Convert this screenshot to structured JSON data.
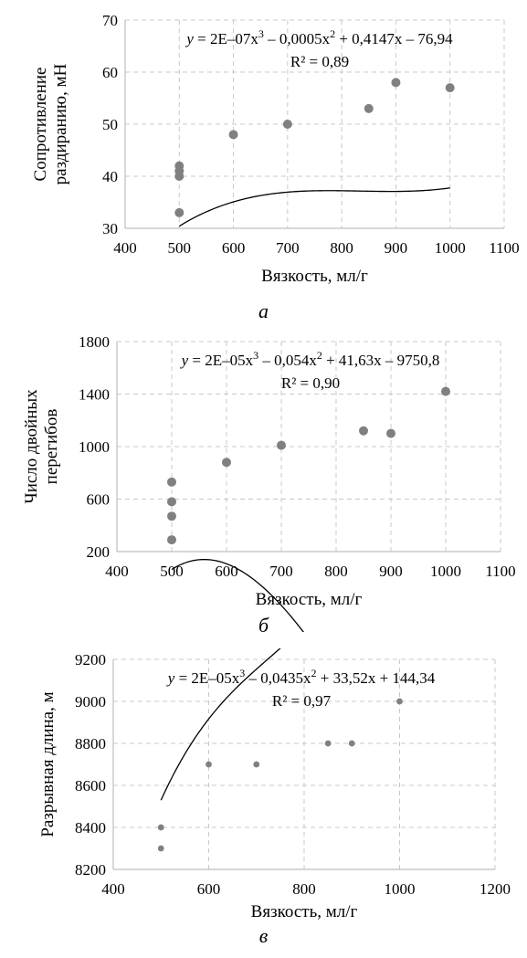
{
  "chart_data": [
    {
      "type": "scatter",
      "panel_label": "а",
      "xlabel": "Вязкость, мл/г",
      "ylabel": [
        "Сопротивление",
        "раздиранию, мН"
      ],
      "xlim": [
        400,
        1100
      ],
      "ylim": [
        30,
        70
      ],
      "xticks": [
        400,
        500,
        600,
        700,
        800,
        900,
        1000,
        1100
      ],
      "yticks": [
        30,
        40,
        50,
        60,
        70
      ],
      "grid": true,
      "series": [
        {
          "x": [
            500,
            500,
            500,
            500,
            600,
            700,
            850,
            900,
            1000
          ],
          "y": [
            33,
            40,
            41,
            42,
            48,
            50,
            53,
            58,
            57
          ]
        }
      ],
      "trendline": {
        "type": "polynomial",
        "degree": 3,
        "coefficients": [
          2e-07,
          -0.0005,
          0.4147,
          -76.94
        ],
        "x_range": [
          500,
          1000
        ],
        "equation": [
          "y = 2E–07x",
          "3",
          " – 0,0005x",
          "2",
          " + 0,4147x – 76,94"
        ],
        "r2": "R² = 0,89"
      }
    },
    {
      "type": "scatter",
      "panel_label": "б",
      "xlabel": "Вязкость, мл/г",
      "ylabel": [
        "Число двойных",
        "перегибов"
      ],
      "xlim": [
        400,
        1100
      ],
      "ylim": [
        200,
        1800
      ],
      "xticks": [
        400,
        500,
        600,
        700,
        800,
        900,
        1000,
        1100
      ],
      "yticks": [
        200,
        600,
        1000,
        1400,
        1800
      ],
      "grid": true,
      "series": [
        {
          "x": [
            500,
            500,
            500,
            500,
            600,
            700,
            850,
            900,
            1000
          ],
          "y": [
            290,
            470,
            580,
            730,
            880,
            1010,
            1120,
            1100,
            1420
          ]
        }
      ],
      "trendline": {
        "type": "polynomial",
        "degree": 3,
        "coefficients": [
          2e-05,
          -0.054,
          41.63,
          -9750.8
        ],
        "x_range": [
          500,
          1000
        ],
        "equation": [
          "y = 2E–05x",
          "3",
          " – 0,054x",
          "2",
          " + 41,63x – 9750,8"
        ],
        "r2": "R² = 0,90"
      }
    },
    {
      "type": "scatter",
      "panel_label": "в",
      "xlabel": "Вязкость, мл/г",
      "ylabel": [
        "Разрывная длина, м"
      ],
      "xlim": [
        400,
        1200
      ],
      "ylim": [
        8200,
        9200
      ],
      "xticks": [
        400,
        600,
        800,
        1000,
        1200
      ],
      "yticks": [
        8200,
        8400,
        8600,
        8800,
        9000,
        9200
      ],
      "grid": true,
      "series": [
        {
          "x": [
            500,
            500,
            600,
            700,
            850,
            900,
            1000
          ],
          "y": [
            8300,
            8400,
            8700,
            8700,
            8800,
            8800,
            9000
          ]
        }
      ],
      "trendline": {
        "type": "polynomial",
        "degree": 3,
        "coefficients": [
          2e-05,
          -0.0435,
          33.52,
          144.34
        ],
        "x_range": [
          500,
          1000
        ],
        "equation": [
          "y = 2E–05x",
          "3",
          " – 0,0435x",
          "2",
          " + 33,52x + 144,34"
        ],
        "r2": "R² = 0,97"
      }
    }
  ],
  "colors": {
    "marker": "#808080",
    "grid": "#c8c8c8",
    "axis": "#bfbfbf",
    "trend": "#000000"
  }
}
